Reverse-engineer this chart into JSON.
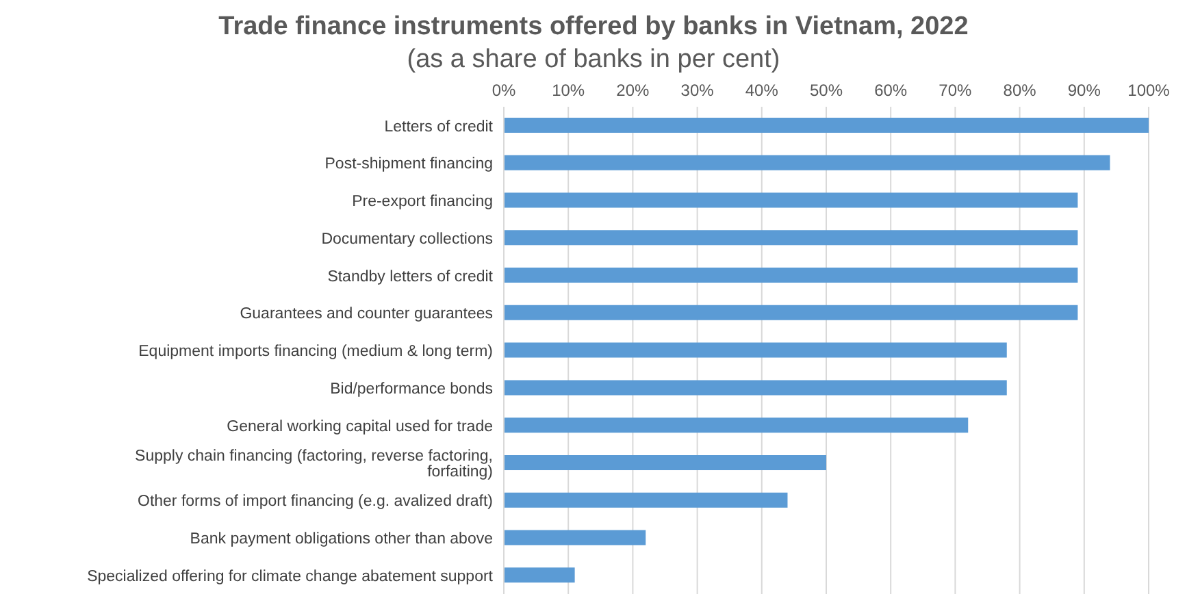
{
  "chart_data": {
    "type": "bar",
    "orientation": "horizontal",
    "title": "Trade finance instruments offered by banks in Vietnam, 2022",
    "subtitle": "(as a share of banks in per cent)",
    "categories": [
      "Letters of credit",
      "Post-shipment financing",
      "Pre-export financing",
      "Documentary collections",
      "Standby letters of credit",
      "Guarantees and counter guarantees",
      "Equipment imports financing (medium & long term)",
      "Bid/performance bonds",
      "General working capital used for trade",
      "Supply chain financing (factoring, reverse factoring, forfaiting)",
      "Other forms of import financing (e.g. avalized draft)",
      "Bank payment obligations other than above",
      "Specialized offering for climate change abatement support"
    ],
    "values": [
      100,
      94,
      89,
      89,
      89,
      89,
      78,
      78,
      72,
      50,
      44,
      22,
      11
    ],
    "color": "#5b9bd5",
    "xlim": [
      0,
      100
    ],
    "xticks": [
      {
        "value": 0,
        "label": "0%"
      },
      {
        "value": 10,
        "label": "10%"
      },
      {
        "value": 20,
        "label": "20%"
      },
      {
        "value": 30,
        "label": "30%"
      },
      {
        "value": 40,
        "label": "40%"
      },
      {
        "value": 50,
        "label": "50%"
      },
      {
        "value": 60,
        "label": "60%"
      },
      {
        "value": 70,
        "label": "70%"
      },
      {
        "value": 80,
        "label": "80%"
      },
      {
        "value": 90,
        "label": "90%"
      },
      {
        "value": 100,
        "label": "100%"
      }
    ],
    "grid": "x"
  }
}
